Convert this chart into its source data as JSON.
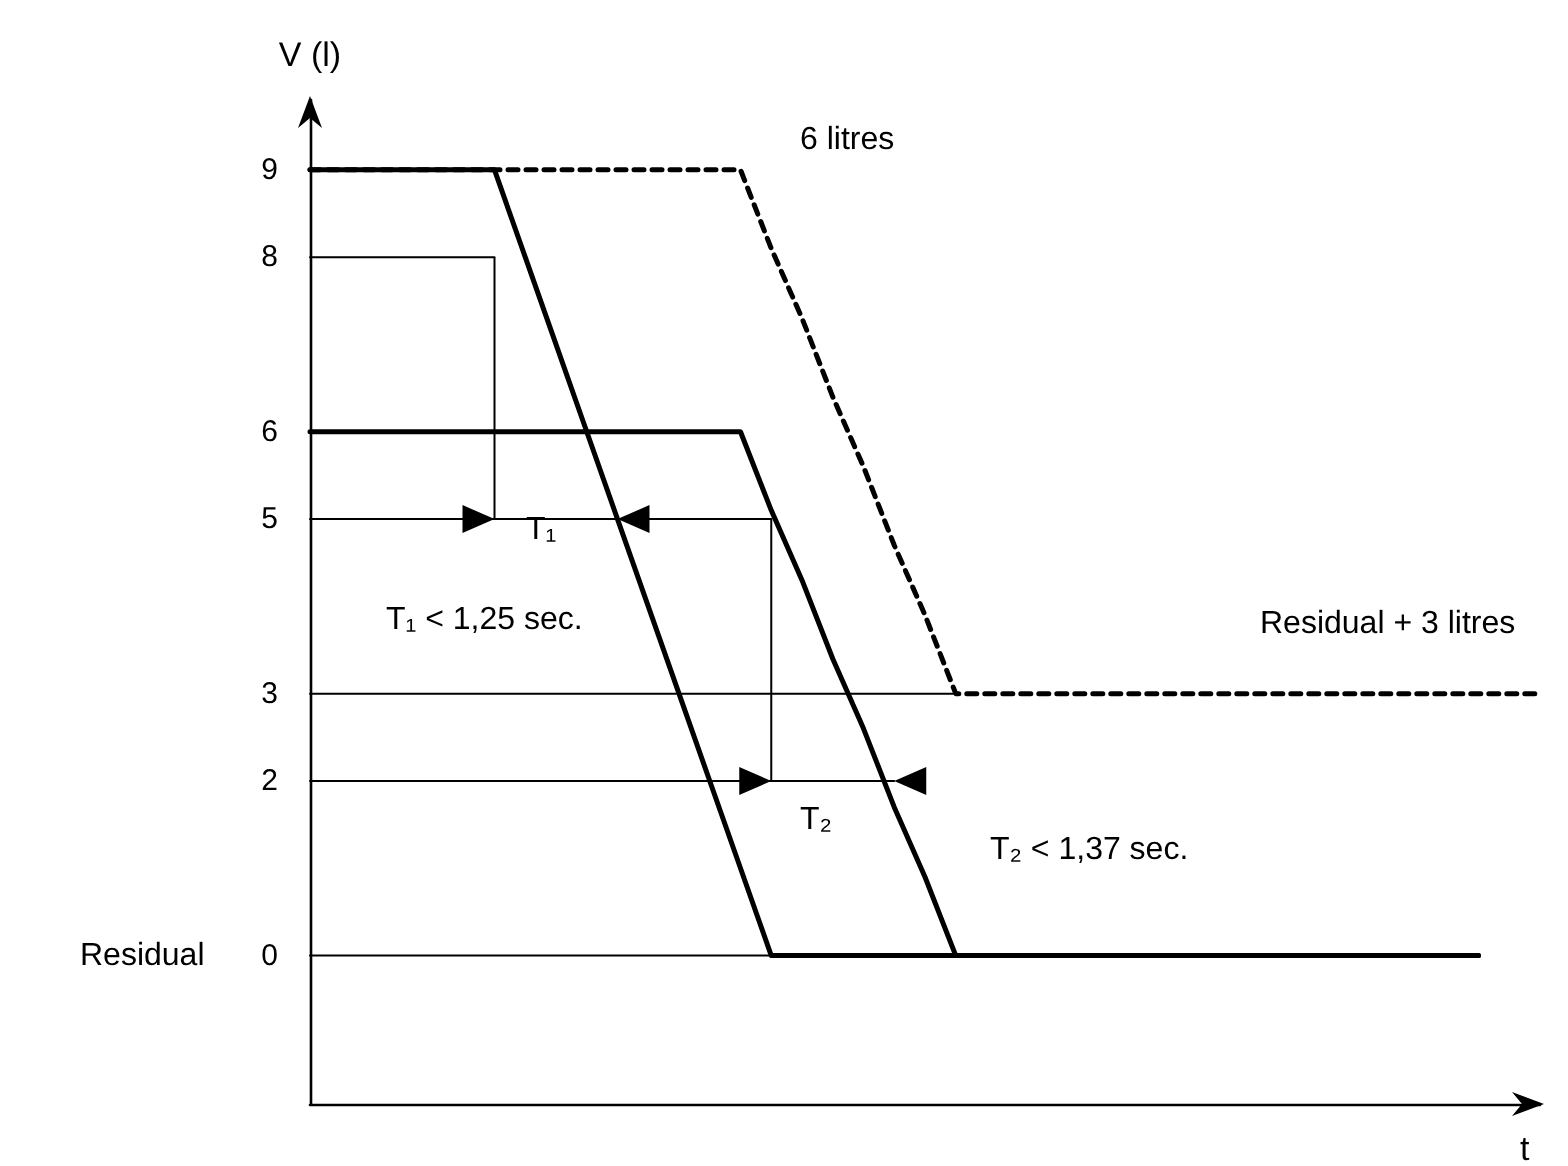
{
  "chart_data": {
    "type": "line",
    "xlabel": "t",
    "ylabel": "V (l)",
    "ylim": [
      -1.7,
      9.8
    ],
    "yticks": [
      0,
      2,
      3,
      5,
      6,
      8,
      9
    ],
    "tick_labels": "y",
    "grid": false,
    "marker": "none",
    "categories": [
      null,
      null,
      null,
      null,
      null,
      null,
      null,
      null,
      null,
      null,
      null,
      null,
      null,
      null,
      null,
      null,
      null,
      null,
      null,
      null,
      null,
      null,
      null,
      null,
      null,
      null,
      null,
      null,
      null,
      null,
      null,
      null,
      null,
      null,
      null,
      null,
      null,
      null,
      null,
      null,
      null
    ],
    "series": [
      {
        "color": "#000000",
        "line_style": "solid",
        "values": [
          9,
          9,
          9,
          9,
          9,
          9,
          9,
          8,
          7,
          6,
          5,
          4,
          3,
          2,
          1,
          0,
          0,
          0,
          0,
          0,
          0,
          0,
          0,
          0,
          0,
          0,
          0,
          0,
          0,
          0,
          0,
          0,
          0,
          0,
          0,
          0,
          0,
          0,
          0,
          null,
          null
        ]
      },
      {
        "color": "#000000",
        "line_style": "solid",
        "values": [
          6,
          6,
          6,
          6,
          6,
          6,
          6,
          6,
          6,
          6,
          6,
          6,
          6,
          6,
          6,
          5.1,
          4.3,
          3.4,
          2.6,
          1.7,
          0.9,
          0,
          0,
          0,
          0,
          0,
          0,
          0,
          0,
          0,
          0,
          0,
          0,
          0,
          0,
          0,
          0,
          0,
          0,
          null,
          null
        ]
      },
      {
        "color": "#000000",
        "line_style": "dashed",
        "values": [
          9,
          9,
          9,
          9,
          9,
          9,
          9,
          9,
          9,
          9,
          9,
          9,
          9,
          9,
          9,
          8.1,
          7.3,
          6.4,
          5.6,
          4.7,
          3.9,
          3,
          3,
          3,
          3,
          3,
          3,
          3,
          3,
          3,
          3,
          3,
          3,
          3,
          3,
          3,
          3,
          3,
          3,
          3,
          3
        ]
      },
      {
        "color": "#000000",
        "values": [
          8,
          8,
          8,
          8,
          8,
          8,
          8,
          null,
          null,
          null,
          null,
          null,
          null,
          null,
          null,
          null,
          null,
          null,
          null,
          null,
          null,
          null,
          null,
          null,
          null,
          null,
          null,
          null,
          null,
          null,
          null,
          null,
          null,
          null,
          null,
          null,
          null,
          null,
          null,
          null,
          null
        ]
      },
      {
        "color": "#000000",
        "values": [
          5,
          5,
          5,
          5,
          5,
          5,
          5,
          5,
          5,
          5,
          5,
          5,
          5,
          5,
          5,
          5,
          null,
          null,
          null,
          null,
          null,
          null,
          null,
          null,
          null,
          null,
          null,
          null,
          null,
          null,
          null,
          null,
          null,
          null,
          null,
          null,
          null,
          null,
          null,
          null,
          null
        ]
      },
      {
        "color": "#000000",
        "values": [
          2,
          2,
          2,
          2,
          2,
          2,
          2,
          2,
          2,
          2,
          2,
          2,
          2,
          2,
          2,
          2,
          2,
          2,
          2,
          2,
          null,
          null,
          null,
          null,
          null,
          null,
          null,
          null,
          null,
          null,
          null,
          null,
          null,
          null,
          null,
          null,
          null,
          null,
          null,
          null,
          null
        ]
      },
      {
        "color": "#000000",
        "values": [
          3,
          3,
          3,
          3,
          3,
          3,
          3,
          3,
          3,
          3,
          3,
          3,
          3,
          3,
          3,
          3,
          3,
          3,
          3,
          3,
          3,
          3,
          null,
          null,
          null,
          null,
          null,
          null,
          null,
          null,
          null,
          null,
          null,
          null,
          null,
          null,
          null,
          null,
          null,
          null,
          null
        ]
      },
      {
        "color": "#000000",
        "values": [
          0,
          0,
          0,
          0,
          0,
          0,
          0,
          0,
          0,
          0,
          0,
          0,
          0,
          0,
          0,
          0,
          0,
          0,
          0,
          0,
          0,
          0,
          null,
          null,
          null,
          null,
          null,
          null,
          null,
          null,
          null,
          null,
          null,
          null,
          null,
          null,
          null,
          null,
          null,
          null,
          null
        ]
      }
    ],
    "annotations": [
      "6 litres",
      "Residual + 3 litres",
      "T₁ < 1,25 sec.",
      "T₂ < 1,37 sec.",
      "T₁",
      "T₂",
      "Residual"
    ]
  }
}
